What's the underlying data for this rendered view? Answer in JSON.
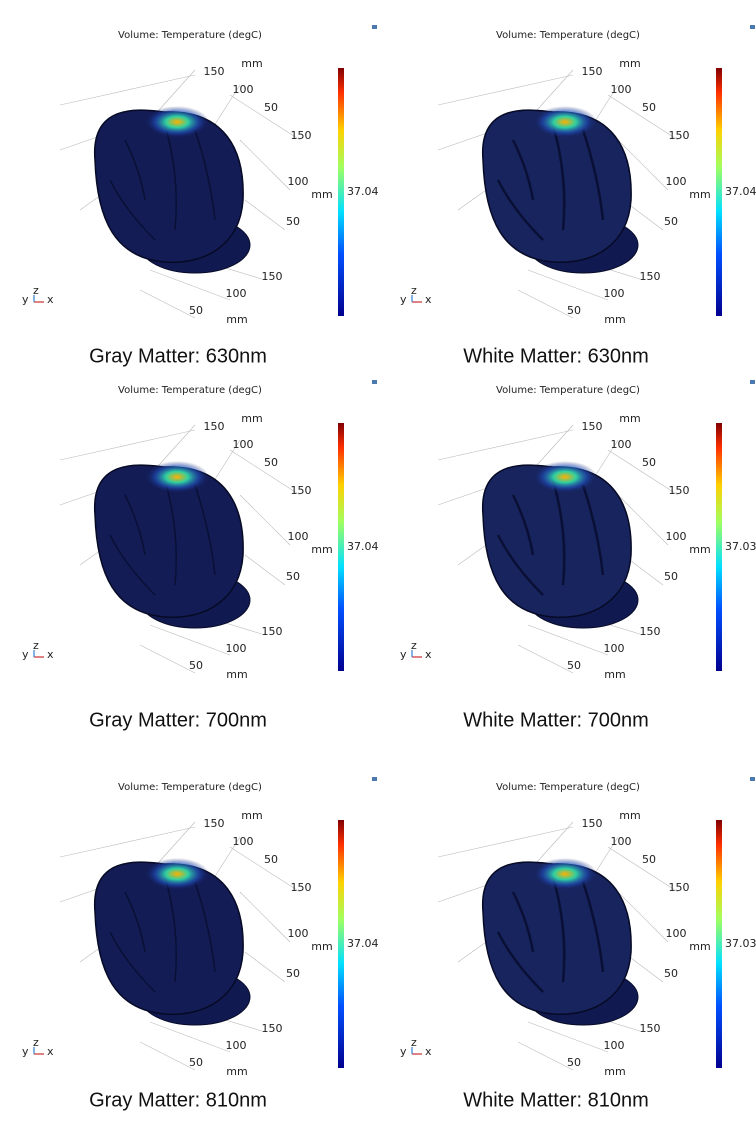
{
  "panels": [
    {
      "title": "Volume: Temperature (degC)",
      "caption": "Gray Matter: 630nm",
      "colorbar_label": "37.04",
      "unit": "mm",
      "top_ticks": [
        "150",
        "100",
        "50"
      ],
      "right_ticks": [
        "150",
        "100",
        "50"
      ],
      "bottom_ticks": [
        "150",
        "100",
        "50"
      ],
      "triad": [
        "y",
        "z",
        "x"
      ]
    },
    {
      "title": "Volume: Temperature (degC)",
      "caption": "White Matter: 630nm",
      "colorbar_label": "37.04",
      "unit": "mm",
      "top_ticks": [
        "150",
        "100",
        "50"
      ],
      "right_ticks": [
        "150",
        "100",
        "50"
      ],
      "bottom_ticks": [
        "150",
        "100",
        "50"
      ],
      "triad": [
        "y",
        "z",
        "x"
      ]
    },
    {
      "title": "Volume: Temperature (degC)",
      "caption": "Gray Matter: 700nm",
      "colorbar_label": "37.04",
      "unit": "mm",
      "top_ticks": [
        "150",
        "100",
        "50"
      ],
      "right_ticks": [
        "150",
        "100",
        "50"
      ],
      "bottom_ticks": [
        "150",
        "100",
        "50"
      ],
      "triad": [
        "y",
        "z",
        "x"
      ]
    },
    {
      "title": "Volume: Temperature (degC)",
      "caption": "White Matter: 700nm",
      "colorbar_label": "37.03",
      "unit": "mm",
      "top_ticks": [
        "150",
        "100",
        "50"
      ],
      "right_ticks": [
        "150",
        "100",
        "50"
      ],
      "bottom_ticks": [
        "150",
        "100",
        "50"
      ],
      "triad": [
        "y",
        "z",
        "x"
      ]
    },
    {
      "title": "Volume: Temperature (degC)",
      "caption": "Gray Matter: 810nm",
      "colorbar_label": "37.04",
      "unit": "mm",
      "top_ticks": [
        "150",
        "100",
        "50"
      ],
      "right_ticks": [
        "150",
        "100",
        "50"
      ],
      "bottom_ticks": [
        "150",
        "100",
        "50"
      ],
      "triad": [
        "y",
        "z",
        "x"
      ]
    },
    {
      "title": "Volume: Temperature (degC)",
      "caption": "White Matter: 810nm",
      "colorbar_label": "37.03",
      "unit": "mm",
      "top_ticks": [
        "150",
        "100",
        "50"
      ],
      "right_ticks": [
        "150",
        "100",
        "50"
      ],
      "bottom_ticks": [
        "150",
        "100",
        "50"
      ],
      "triad": [
        "y",
        "z",
        "x"
      ]
    }
  ]
}
